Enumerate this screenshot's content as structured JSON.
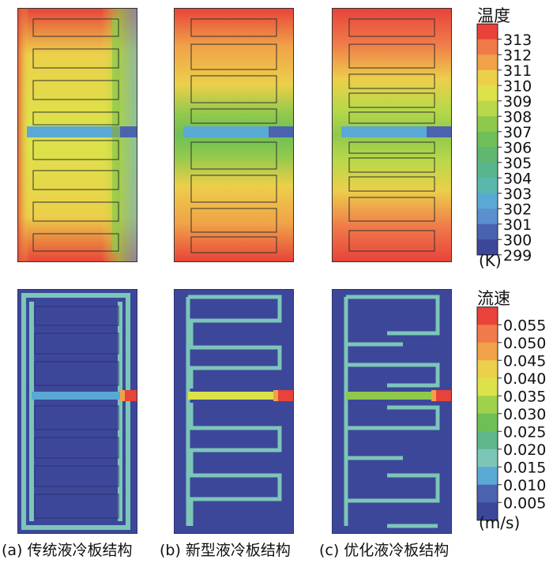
{
  "legends": {
    "temperature": {
      "title": "温度",
      "unit": "(K)",
      "ticks": [
        "313",
        "312",
        "311",
        "310",
        "309",
        "308",
        "307",
        "306",
        "305",
        "304",
        "303",
        "302",
        "301",
        "300",
        "299"
      ],
      "colors": [
        "#e8423a",
        "#f07a4a",
        "#f0a248",
        "#eccf4a",
        "#dde24a",
        "#b9d84a",
        "#8fc94c",
        "#6fbf58",
        "#5fb770",
        "#58b68f",
        "#58b8ac",
        "#5aa9d4",
        "#5a8fd0",
        "#4b63ae",
        "#3d479a"
      ]
    },
    "velocity": {
      "title": "流速",
      "unit": "(m/s)",
      "ticks": [
        "0.055",
        "0.050",
        "0.045",
        "0.040",
        "0.035",
        "0.030",
        "0.025",
        "0.020",
        "0.015",
        "0.010",
        "0.005"
      ],
      "colors": [
        "#e8423a",
        "#f07a4a",
        "#f0a248",
        "#eccf4a",
        "#dde24a",
        "#9fd24a",
        "#6fbf58",
        "#5fb78a",
        "#7cc6b8",
        "#5aa9d4",
        "#4b63ae",
        "#3d479a"
      ]
    }
  },
  "captions": [
    "(a) 传统液冷板结构",
    "(b) 新型液冷板结构",
    "(c) 优化液冷板结构"
  ]
}
